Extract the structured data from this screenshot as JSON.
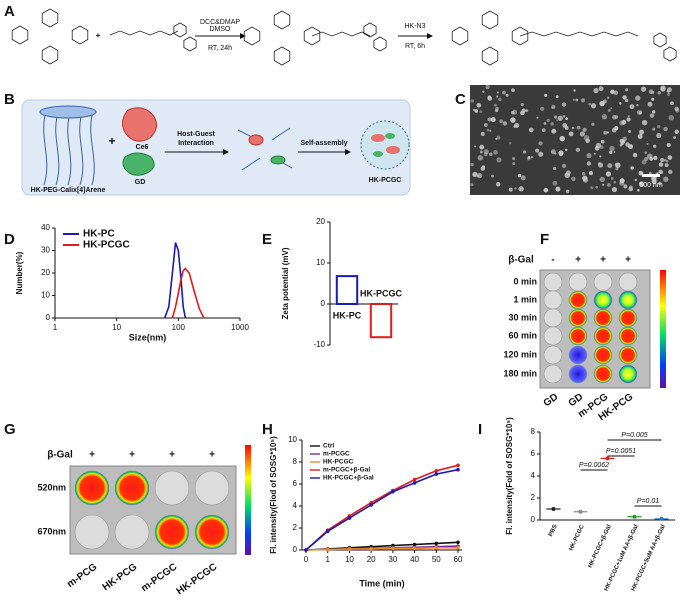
{
  "panel_labels": [
    "A",
    "B",
    "C",
    "D",
    "E",
    "F",
    "G",
    "H",
    "I"
  ],
  "scheme": {
    "plus": "+",
    "step1": [
      "DCC&DMAP",
      "DMSO",
      "RT, 24h"
    ],
    "step2": [
      "HK-N3",
      "RT, 6h"
    ]
  },
  "diagram": {
    "host": "HK-PEG-Calix[4]Arene",
    "plus": "+",
    "guest1": "Ce6",
    "guest2": "GD",
    "step1": [
      "Host-Guest",
      "Interaction"
    ],
    "step2": "Self-assembly",
    "product": "HK-PCGC"
  },
  "micrograph": {
    "scale_bar": "500 nm"
  },
  "plate_f": {
    "reagent": "β-Gal",
    "conditions": [
      "-",
      "+",
      "+",
      "+"
    ],
    "times": [
      "0 min",
      "1 min",
      "30 min",
      "60 min",
      "120 min",
      "180 min"
    ],
    "samples": [
      "GD",
      "GD",
      "m-PCG",
      "HK-PCG"
    ]
  },
  "plate_g": {
    "reagent": "β-Gal",
    "conditions": [
      "+",
      "+",
      "+",
      "+"
    ],
    "channels": [
      "520nm",
      "670nm"
    ],
    "samples": [
      "m-PCG",
      "HK-PCG",
      "m-PCGC",
      "HK-PCGC"
    ]
  },
  "chart_data": [
    {
      "type": "line",
      "x_label": "Size(nm)",
      "y_label": "Number(%)",
      "log_x": true,
      "xlim": [
        1,
        1000
      ],
      "xticks": [
        1,
        10,
        100,
        1000
      ],
      "ylim": [
        0,
        40
      ],
      "yticks": [
        0,
        10,
        20,
        30,
        40
      ],
      "legend": "upper left",
      "series": [
        {
          "name": "HK-PC",
          "color": "#1a1ab8",
          "x": [
            60,
            70,
            80,
            90,
            100,
            110,
            120,
            130
          ],
          "values": [
            0,
            5,
            20,
            33.5,
            30,
            18,
            5,
            0
          ]
        },
        {
          "name": "HK-PCGC",
          "color": "#e01c1c",
          "x": [
            80,
            90,
            100,
            110,
            120,
            130,
            150,
            180,
            220,
            260
          ],
          "values": [
            0,
            5,
            11,
            17,
            21,
            22,
            20,
            12,
            4,
            0
          ]
        }
      ]
    },
    {
      "type": "bar",
      "y_label": "Zeta potential (mV)",
      "categories": [
        "HK-PC",
        "HK-PCGC"
      ],
      "values": [
        6.8,
        -8.1
      ],
      "colors": [
        "#1a1ab8",
        "#e01c1c"
      ],
      "ylim": [
        -10,
        20
      ],
      "yticks": [
        -10,
        0,
        10,
        20
      ]
    },
    {
      "type": "line",
      "x_label": "Time (min)",
      "y_label": "Fl. intensity(Flod of SOSG*10⁵)",
      "categories": [
        "0",
        "1",
        "10",
        "20",
        "30",
        "40",
        "50",
        "60"
      ],
      "ylim": [
        0,
        10
      ],
      "yticks": [
        0,
        2,
        4,
        6,
        8,
        10
      ],
      "legend": "upper left",
      "series": [
        {
          "name": "Ctrl",
          "color": "#111111",
          "values": [
            0,
            0.1,
            0.2,
            0.3,
            0.4,
            0.5,
            0.6,
            0.7
          ]
        },
        {
          "name": "m-PCGC",
          "color": "#7a2aa8",
          "values": [
            0,
            0.05,
            0.1,
            0.15,
            0.2,
            0.25,
            0.3,
            0.35
          ]
        },
        {
          "name": "HK-PCGC",
          "color": "#f08a30",
          "values": [
            0,
            0.05,
            0.1,
            0.1,
            0.15,
            0.15,
            0.2,
            0.2
          ]
        },
        {
          "name": "m-PCGC+β-Gal",
          "color": "#e01c1c",
          "values": [
            0,
            1.8,
            3.1,
            4.3,
            5.4,
            6.4,
            7.2,
            7.7
          ]
        },
        {
          "name": "HK-PCGC+β-Gal",
          "color": "#1a1ab8",
          "values": [
            0,
            1.7,
            2.9,
            4.1,
            5.3,
            6.1,
            6.9,
            7.3
          ]
        }
      ]
    },
    {
      "type": "dot",
      "y_label": "Fl. intensity(Fold of SOSG*10⁵)",
      "categories": [
        "PBS",
        "HK-PCGC",
        "HK-PCGC+β-Gal",
        "HK-PCGC+1uM AA+β-Gal",
        "HK-PCGC+5uM AA+β-Gal"
      ],
      "values": [
        1.0,
        0.75,
        5.6,
        0.3,
        0.1
      ],
      "colors": [
        "#222222",
        "#888888",
        "#e01c1c",
        "#2a9a2a",
        "#1a7ad8"
      ],
      "ylim": [
        0,
        8
      ],
      "yticks": [
        0,
        2,
        4,
        6,
        8
      ],
      "annotations": [
        "P=0.005",
        "P=0.0051",
        "P=0.0062",
        "P=0.01"
      ]
    }
  ]
}
